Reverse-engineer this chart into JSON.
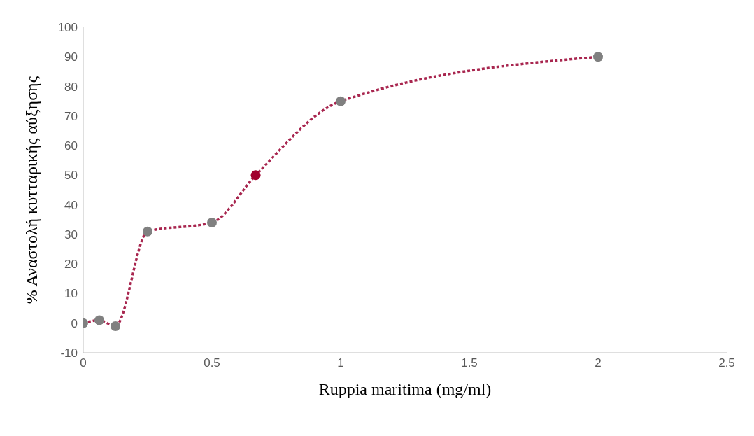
{
  "chart_data": {
    "type": "line",
    "xlabel": "Ruppia maritima (mg/ml)",
    "ylabel": "% Αναστολή κυτταρικής αύξησης",
    "x": [
      0,
      0.0625,
      0.125,
      0.25,
      0.5,
      0.67,
      1,
      2
    ],
    "series": [
      {
        "color": "#a8264f",
        "values": [
          0,
          1,
          -1,
          31,
          34,
          50,
          75,
          90
        ],
        "colors": [
          "#808080",
          "#808080",
          "#808080",
          "#808080",
          "#808080",
          "#a0002e",
          "#808080",
          "#808080"
        ]
      }
    ],
    "xlim": [
      0,
      2.5
    ],
    "xticks": [
      0,
      0.5,
      1,
      1.5,
      2,
      2.5
    ],
    "ylim": [
      -10,
      100
    ],
    "yticks": [
      -10,
      0,
      10,
      20,
      30,
      40,
      50,
      60,
      70,
      80,
      90,
      100
    ],
    "grid": false,
    "legend": false,
    "marker": "circle",
    "line_style": "dotted"
  }
}
